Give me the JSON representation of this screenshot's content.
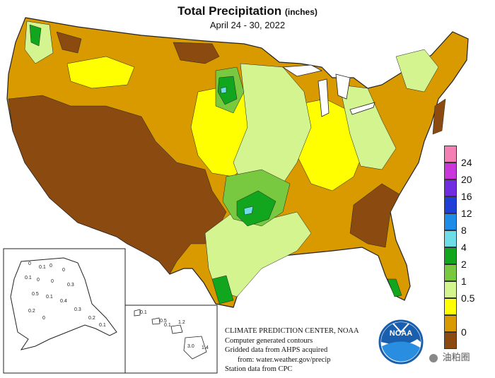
{
  "header": {
    "title": "Total Precipitation",
    "title_unit": "(inches)",
    "subtitle": "April 24 - 30, 2022"
  },
  "legend": {
    "items": [
      {
        "label": "24",
        "color": "#f47fb4"
      },
      {
        "label": "20",
        "color": "#c936d9"
      },
      {
        "label": "16",
        "color": "#6f2ce0"
      },
      {
        "label": "12",
        "color": "#1f3fd6"
      },
      {
        "label": "8",
        "color": "#1f8ce8"
      },
      {
        "label": "4",
        "color": "#6fdde6"
      },
      {
        "label": "2",
        "color": "#12a51e"
      },
      {
        "label": "1",
        "color": "#78c940"
      },
      {
        "label": "0.5",
        "color": "#d3f48f"
      },
      {
        "label": "",
        "color": "#ffff00"
      },
      {
        "label": "0",
        "color": "#d99a00"
      },
      {
        "label": "",
        "color": "#8b4a10"
      }
    ]
  },
  "credit": {
    "line1": "CLIMATE PREDICTION CENTER, NOAA",
    "line2": "Computer generated contours",
    "line3": "Gridded data from AHPS acquired",
    "line4": "from: water.weather.gov/precip",
    "line5": "Station data from CPC"
  },
  "logo": {
    "text": "NOAA"
  },
  "watermark": {
    "text": "油粕圈"
  },
  "alaska_values": [
    "0",
    "0.1",
    "0",
    "0",
    "0.1",
    "0",
    "0",
    "0.3",
    "0.5",
    "0.1",
    "0.4",
    "0.3",
    "0.2",
    "0.1",
    "0.2",
    "0"
  ],
  "hawaii_values": [
    "0.1",
    "0.5",
    "1.2",
    "0.1",
    "3.0",
    "1.4"
  ],
  "colors": {
    "dry_brown": "#8b4a10",
    "orange": "#d99a00",
    "yellow": "#ffff00",
    "light_green": "#d3f48f",
    "mid_green": "#78c940",
    "dark_green": "#12a51e",
    "cyan": "#6fdde6",
    "noaa_blue": "#1a5fae"
  }
}
